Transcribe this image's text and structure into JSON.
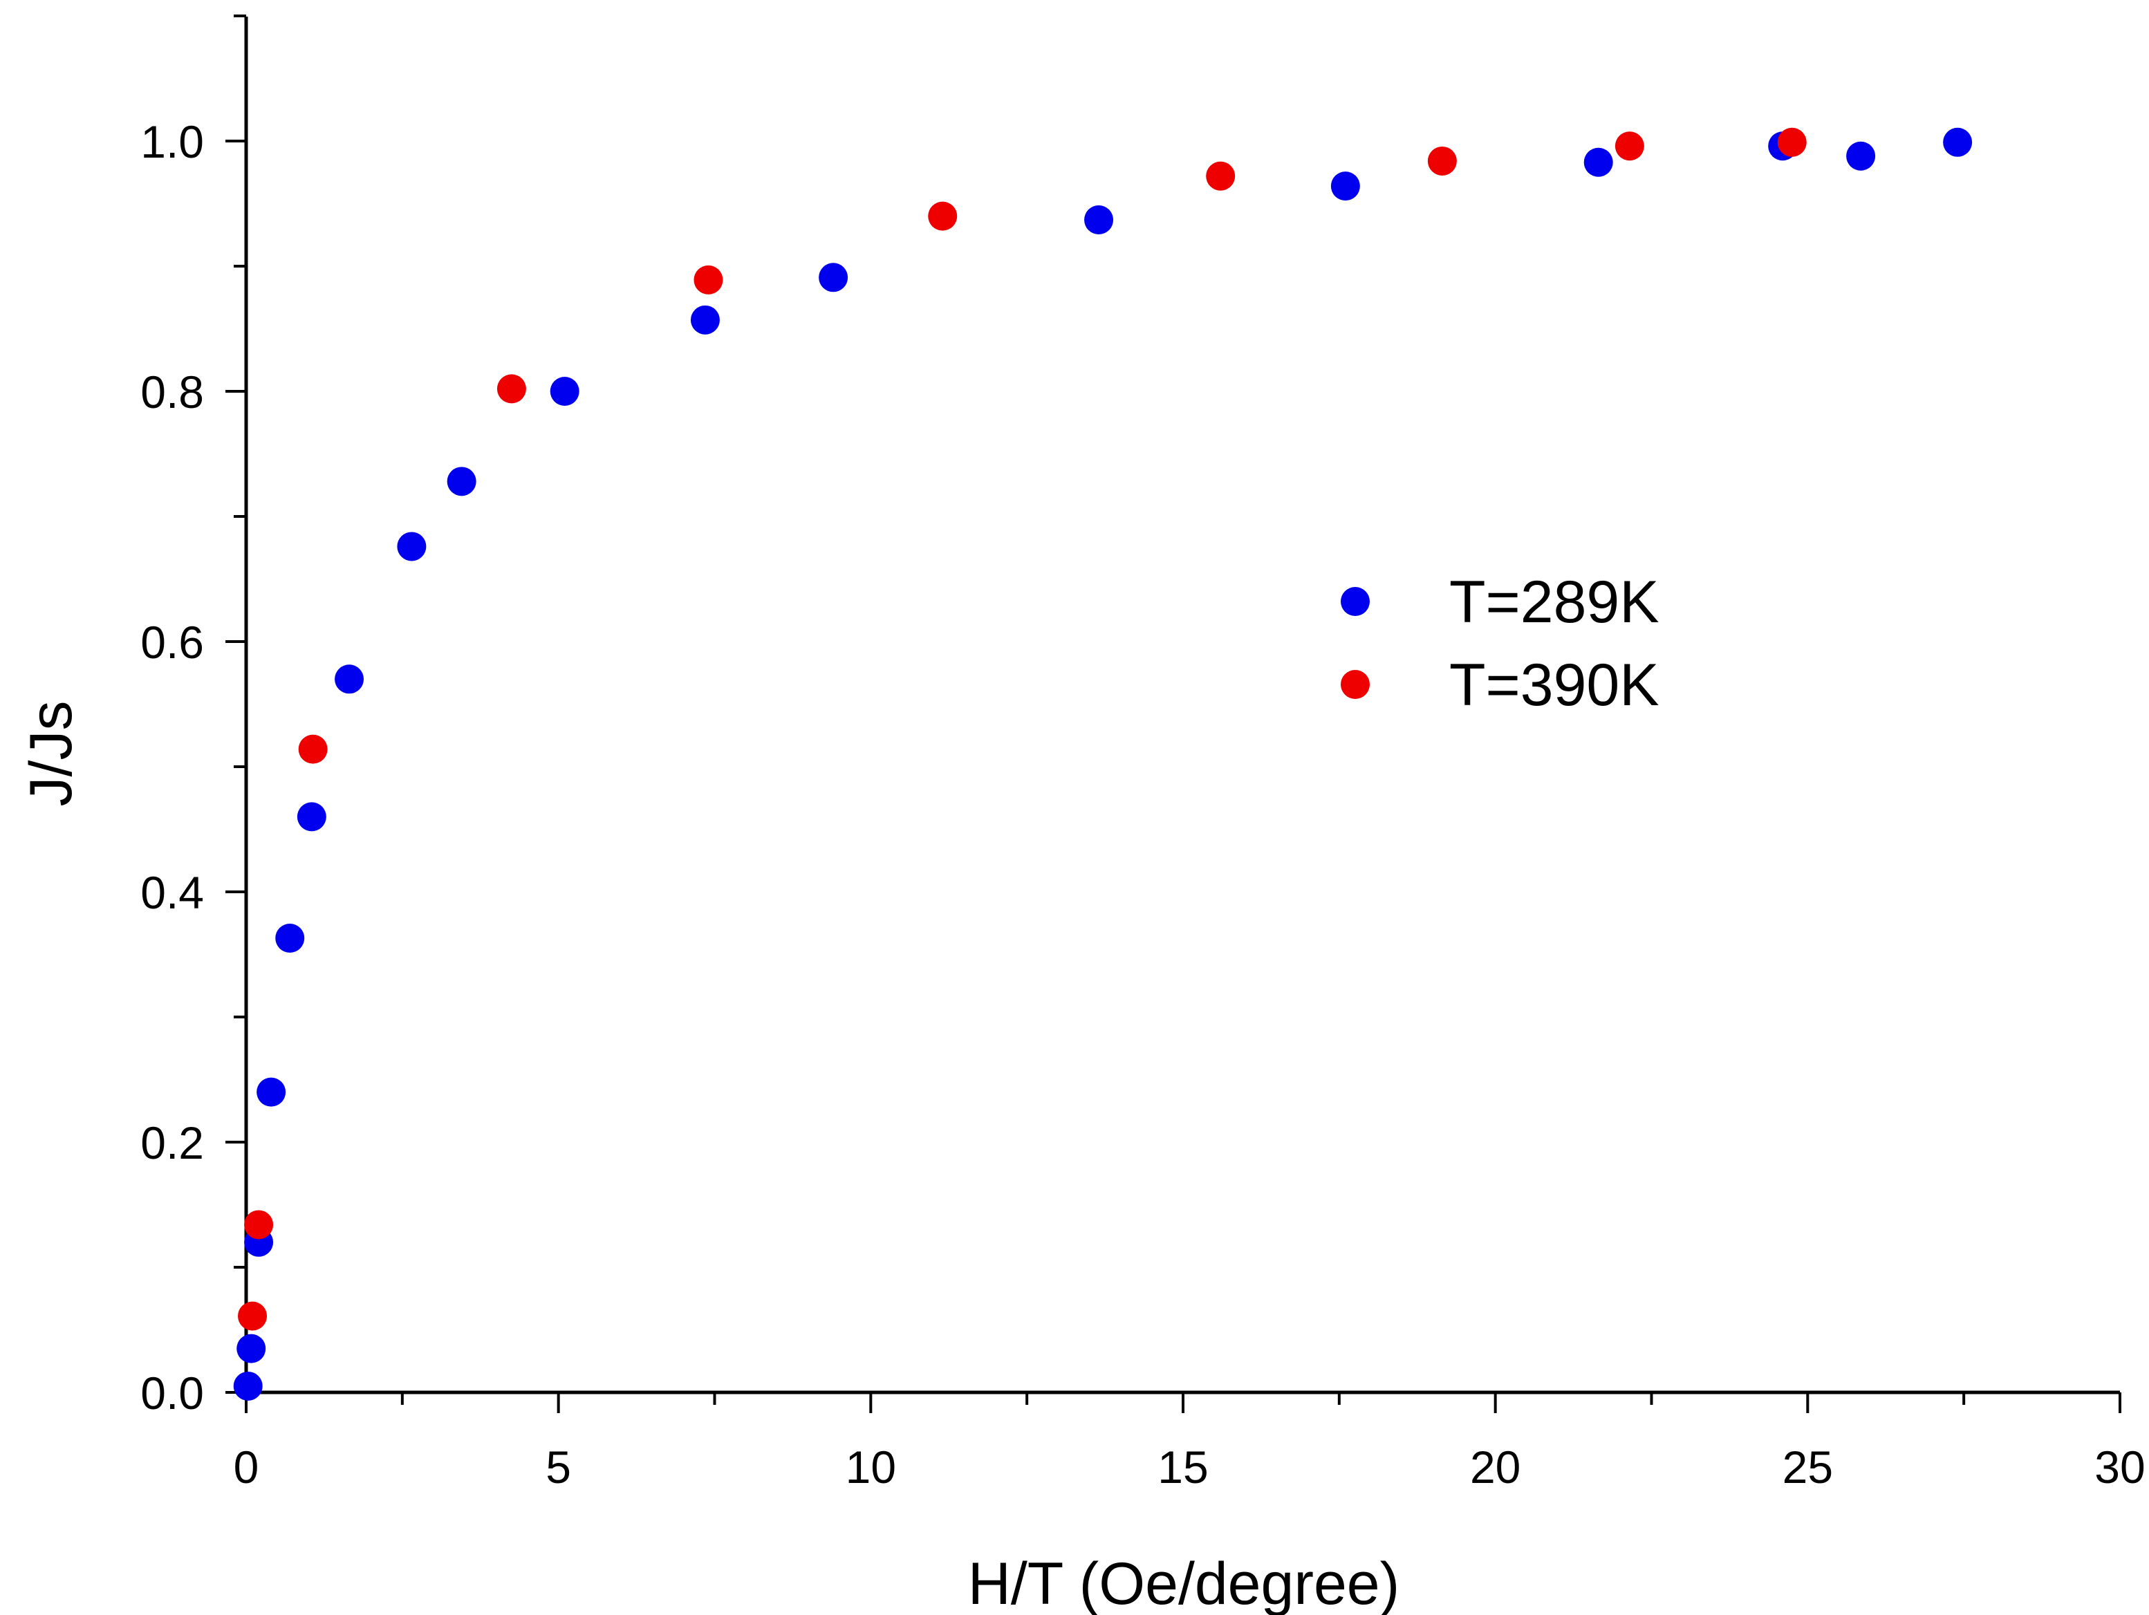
{
  "chart_data": {
    "type": "scatter",
    "title": "",
    "xlabel": "H/T (Oe/degree)",
    "ylabel": "J/Js",
    "xlim": [
      0,
      30
    ],
    "ylim": [
      0,
      1.1
    ],
    "x_ticks": [
      0,
      5,
      10,
      15,
      20,
      25,
      30
    ],
    "x_tick_labels": [
      "0",
      "5",
      "10",
      "15",
      "20",
      "25",
      "30"
    ],
    "y_ticks": [
      0.0,
      0.2,
      0.4,
      0.6,
      0.8,
      1.0
    ],
    "y_tick_labels": [
      "0.0",
      "0.2",
      "0.4",
      "0.6",
      "0.8",
      "1.0"
    ],
    "grid": false,
    "legend_position": "center-right",
    "series": [
      {
        "name": "T=289K",
        "color": "#0000ee",
        "points": [
          [
            0.03,
            0.005
          ],
          [
            0.08,
            0.035
          ],
          [
            0.2,
            0.12
          ],
          [
            0.4,
            0.24
          ],
          [
            0.7,
            0.363
          ],
          [
            1.05,
            0.46
          ],
          [
            1.65,
            0.57
          ],
          [
            2.65,
            0.676
          ],
          [
            3.45,
            0.728
          ],
          [
            5.1,
            0.8
          ],
          [
            7.35,
            0.857
          ],
          [
            9.4,
            0.891
          ],
          [
            13.65,
            0.937
          ],
          [
            17.6,
            0.964
          ],
          [
            21.65,
            0.983
          ],
          [
            24.6,
            0.996
          ],
          [
            25.85,
            0.988
          ],
          [
            27.4,
            0.999
          ]
        ]
      },
      {
        "name": "T=390K",
        "color": "#ee0000",
        "points": [
          [
            0.1,
            0.061
          ],
          [
            0.2,
            0.134
          ],
          [
            1.07,
            0.514
          ],
          [
            4.25,
            0.802
          ],
          [
            7.4,
            0.889
          ],
          [
            11.15,
            0.94
          ],
          [
            15.6,
            0.972
          ],
          [
            19.15,
            0.984
          ],
          [
            22.15,
            0.996
          ],
          [
            24.75,
            0.999
          ]
        ]
      }
    ]
  }
}
